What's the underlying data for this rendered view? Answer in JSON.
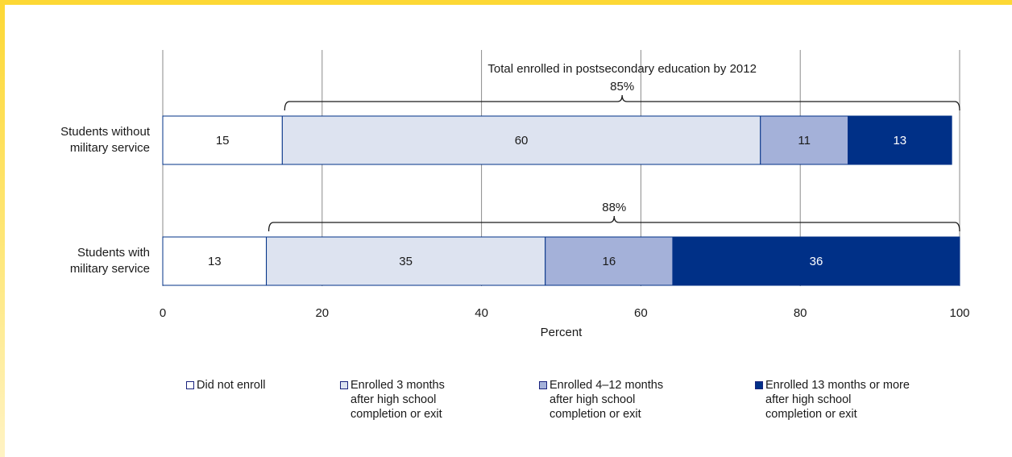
{
  "chart_data": {
    "type": "bar",
    "orientation": "horizontal",
    "stacked": true,
    "categories": [
      "Students without military service",
      "Students with military service"
    ],
    "category_lines": [
      [
        "Students without",
        "military service"
      ],
      [
        "Students with",
        "military service"
      ]
    ],
    "series": [
      {
        "name": "Did not enroll",
        "values": [
          15,
          13
        ],
        "color": "#ffffff"
      },
      {
        "name": "Enrolled 3 months after high school completion or exit",
        "values": [
          60,
          35
        ],
        "color": "#dde3f0"
      },
      {
        "name": "Enrolled 4–12 months after high school completion or exit",
        "values": [
          11,
          16
        ],
        "color": "#a4b1d9"
      },
      {
        "name": "Enrolled 13 months or more after high school completion or exit",
        "values": [
          13,
          36
        ],
        "color": "#003087"
      }
    ],
    "xlabel": "Percent",
    "xlim": [
      0,
      100
    ],
    "xticks": [
      0,
      20,
      40,
      60,
      80,
      100
    ],
    "grid": true,
    "legend_position": "bottom",
    "annotations": [
      {
        "category_index": 0,
        "from": 15.3,
        "to": 100,
        "lines": [
          "Total enrolled in postsecondary education by 2012",
          "85%"
        ]
      },
      {
        "category_index": 1,
        "from": 13.3,
        "to": 100,
        "lines": [
          "88%"
        ]
      }
    ]
  },
  "legend": [
    {
      "label": "Did not enroll",
      "color": "#ffffff"
    },
    {
      "label": "Enrolled 3 months\nafter high school\ncompletion or exit",
      "color": "#dde3f0"
    },
    {
      "label": "Enrolled 4–12 months\nafter high school\ncompletion or exit",
      "color": "#a4b1d9"
    },
    {
      "label": "Enrolled 13 months or more\nafter high school\ncompletion or exit",
      "color": "#003087"
    }
  ]
}
